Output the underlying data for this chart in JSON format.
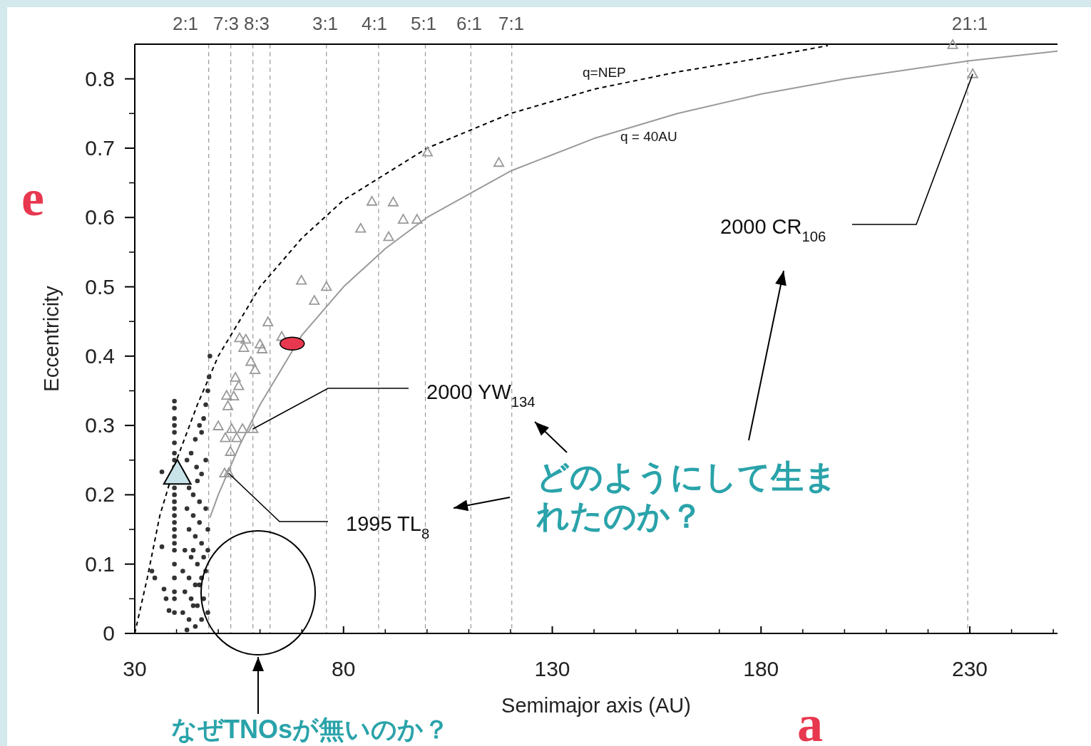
{
  "chart_data": {
    "type": "scatter",
    "xlabel": "Semimajor axis (AU)",
    "ylabel": "Eccentricity",
    "xlim": [
      30,
      251
    ],
    "ylim": [
      0,
      0.85
    ],
    "xticks": [
      30,
      80,
      130,
      180,
      230
    ],
    "yticks": [
      0,
      0.1,
      0.2,
      0.3,
      0.4,
      0.5,
      0.6,
      0.7,
      0.8
    ],
    "ref_lines": [
      {
        "axis": "x",
        "value": 47.7,
        "color": "#999999",
        "line_style": "dashed"
      },
      {
        "axis": "x",
        "value": 53.0,
        "color": "#999999",
        "line_style": "dashed"
      },
      {
        "axis": "x",
        "value": 58.3,
        "color": "#999999",
        "line_style": "dashed"
      },
      {
        "axis": "x",
        "value": 62.4,
        "color": "#999999",
        "line_style": "dashed"
      },
      {
        "axis": "x",
        "value": 75.9,
        "color": "#999999",
        "line_style": "dashed"
      },
      {
        "axis": "x",
        "value": 88.4,
        "color": "#999999",
        "line_style": "dashed"
      },
      {
        "axis": "x",
        "value": 99.6,
        "color": "#999999",
        "line_style": "dashed"
      },
      {
        "axis": "x",
        "value": 110.5,
        "color": "#999999",
        "line_style": "dashed"
      },
      {
        "axis": "x",
        "value": 120.3,
        "color": "#999999",
        "line_style": "dashed"
      },
      {
        "axis": "x",
        "value": 229.5,
        "color": "#999999",
        "line_style": "dashed"
      }
    ],
    "series": [
      {
        "name": "q=NEP",
        "type": "line",
        "color": "#000000",
        "line_style": "dashed",
        "marker": "none",
        "x": [
          30,
          33,
          36,
          40,
          45,
          50,
          55,
          60,
          70,
          80,
          100,
          120,
          140,
          160,
          180,
          196
        ],
        "values": [
          0,
          0.08,
          0.17,
          0.25,
          0.33,
          0.4,
          0.45,
          0.5,
          0.57,
          0.625,
          0.7,
          0.75,
          0.785,
          0.81,
          0.83,
          0.848
        ]
      },
      {
        "name": "q = 40AU",
        "type": "line",
        "color": "#9a9a9a",
        "line_style": "solid",
        "marker": "none",
        "x": [
          48,
          50,
          55,
          60,
          70,
          80,
          90,
          100,
          120,
          140,
          160,
          180,
          200,
          230,
          251
        ],
        "values": [
          0.167,
          0.2,
          0.27,
          0.33,
          0.43,
          0.5,
          0.555,
          0.6,
          0.667,
          0.714,
          0.75,
          0.778,
          0.8,
          0.826,
          0.84
        ]
      },
      {
        "color": "#999999",
        "marker": "triangle",
        "x": [
          225.9,
          230.7,
          100.1,
          117.2,
          86.8,
          91.9,
          84.1,
          94.3,
          97.6,
          90.8,
          69.9,
          75.9,
          73.0,
          61.9,
          65.2,
          55.1,
          56.6,
          56.1,
          60.0,
          60.5,
          57.8,
          58.8,
          54.1,
          54.9,
          52.0,
          53.7,
          52.3,
          50.0,
          53.2,
          55.8,
          58.3,
          51.7,
          54.4,
          52.9,
          51.5,
          52.5
        ],
        "values": [
          0.849,
          0.807,
          0.694,
          0.679,
          0.623,
          0.622,
          0.584,
          0.597,
          0.597,
          0.572,
          0.509,
          0.5,
          0.48,
          0.449,
          0.428,
          0.426,
          0.424,
          0.412,
          0.417,
          0.41,
          0.392,
          0.38,
          0.369,
          0.357,
          0.343,
          0.342,
          0.328,
          0.299,
          0.295,
          0.295,
          0.295,
          0.282,
          0.282,
          0.262,
          0.231,
          0.231
        ]
      },
      {
        "color": "#333333",
        "marker": "circle",
        "x": [
          39.5,
          39.5,
          39.5,
          39.5,
          39.5,
          39.5,
          39.5,
          39.5,
          39.5,
          39.5,
          39.5,
          39.5,
          39.5,
          39.5,
          39.5,
          39.5,
          39.5,
          39.5,
          39.5,
          39.5,
          39.5,
          39.5,
          39.5,
          39.5,
          34.1,
          34.8,
          37.0,
          37.5,
          38.2,
          36.5,
          36.5,
          42.5,
          43.5,
          44.5,
          45.5,
          46.5,
          47.0,
          47.5,
          48.0,
          47.8,
          46.0,
          43.0,
          44.0,
          45.0,
          46.0,
          47.0,
          42.5,
          44.0,
          45.5,
          47.0,
          43.0,
          44.5,
          46.0,
          47.5,
          42.0,
          43.5,
          45.0,
          46.5,
          47.5,
          41.5,
          43.0,
          44.5,
          46.0,
          47.0,
          42.0,
          43.5,
          45.0,
          46.5,
          41.5,
          43.0,
          44.5,
          46.0,
          47.5,
          42.5,
          44.0,
          45.5,
          44.0,
          45.5,
          44.8
        ],
        "values": [
          0.335,
          0.325,
          0.31,
          0.3,
          0.29,
          0.275,
          0.26,
          0.25,
          0.24,
          0.21,
          0.2,
          0.19,
          0.18,
          0.17,
          0.16,
          0.15,
          0.14,
          0.13,
          0.12,
          0.1,
          0.08,
          0.06,
          0.05,
          0.03,
          0.09,
          0.08,
          0.064,
          0.05,
          0.033,
          0.125,
          0.233,
          0.25,
          0.26,
          0.28,
          0.3,
          0.31,
          0.33,
          0.35,
          0.4,
          0.37,
          0.29,
          0.21,
          0.2,
          0.22,
          0.23,
          0.25,
          0.18,
          0.17,
          0.16,
          0.18,
          0.15,
          0.14,
          0.13,
          0.15,
          0.12,
          0.11,
          0.1,
          0.11,
          0.12,
          0.09,
          0.08,
          0.07,
          0.08,
          0.09,
          0.06,
          0.05,
          0.04,
          0.05,
          0.03,
          0.02,
          0.01,
          0.02,
          0.03,
          0.005,
          0.04,
          0.07,
          0.12,
          0.19,
          0.24
        ]
      },
      {
        "color": "#c8e4e8",
        "marker": "triangle",
        "x": [
          40.2
        ],
        "values": [
          0.23
        ]
      },
      {
        "color": "#e8384f",
        "marker": "circle",
        "x": [
          67.7
        ],
        "values": [
          0.418
        ]
      }
    ],
    "annotations": [
      {
        "text": "2000 CR$_{106}$",
        "x": 230.7,
        "y": 0.807
      },
      {
        "text": "2000 YW$_{134}$",
        "x": 58.3,
        "y": 0.295
      },
      {
        "text": "1995 TL$_{8}$",
        "x": 52.5,
        "y": 0.231
      },
      "どのようにして生まれたのか？",
      "なぜTNOsが無いのか？",
      "e",
      "a",
      "2:1",
      "7:3",
      "8:3",
      "3:1",
      "4:1",
      "5:1",
      "6:1",
      "7:1",
      "21:1"
    ]
  }
}
